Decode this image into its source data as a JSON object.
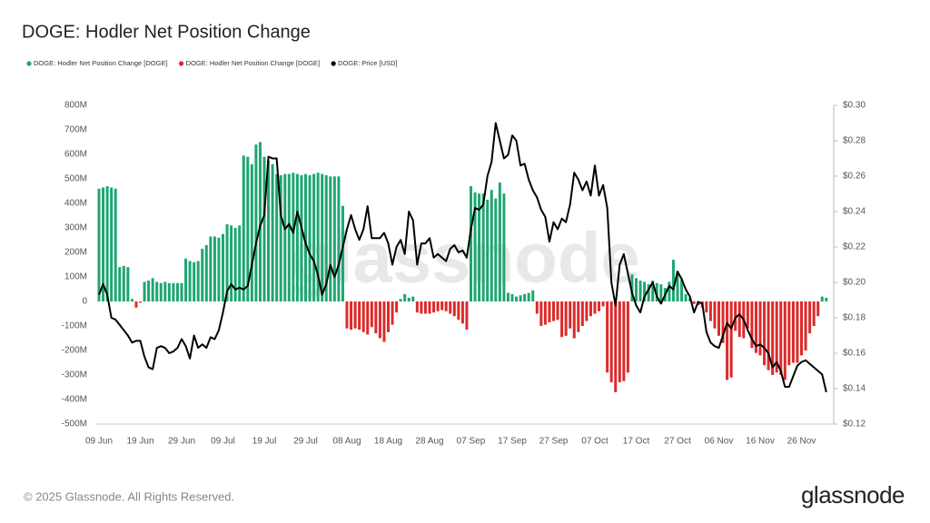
{
  "chart_data": {
    "type": "bar",
    "title": "DOGE: Hodler Net Position Change",
    "categories": [
      "09 Jun",
      null,
      null,
      null,
      null,
      null,
      null,
      null,
      null,
      null,
      "19 Jun",
      null,
      null,
      null,
      null,
      null,
      null,
      null,
      null,
      null,
      "29 Jun",
      null,
      null,
      null,
      null,
      null,
      null,
      null,
      null,
      null,
      "09 Jul",
      null,
      null,
      null,
      null,
      null,
      null,
      null,
      null,
      null,
      "19 Jul",
      null,
      null,
      null,
      null,
      null,
      null,
      null,
      null,
      null,
      "29 Jul",
      null,
      null,
      null,
      null,
      null,
      null,
      null,
      null,
      null,
      "08 Aug",
      null,
      null,
      null,
      null,
      null,
      null,
      null,
      null,
      null,
      "18 Aug",
      null,
      null,
      null,
      null,
      null,
      null,
      null,
      null,
      null,
      "28 Aug",
      null,
      null,
      null,
      null,
      null,
      null,
      null,
      null,
      null,
      "07 Sep",
      null,
      null,
      null,
      null,
      null,
      null,
      null,
      null,
      null,
      "17 Sep",
      null,
      null,
      null,
      null,
      null,
      null,
      null,
      null,
      null,
      "27 Sep",
      null,
      null,
      null,
      null,
      null,
      null,
      null,
      null,
      null,
      "07 Oct",
      null,
      null,
      null,
      null,
      null,
      null,
      null,
      null,
      null,
      "17 Oct",
      null,
      null,
      null,
      null,
      null,
      null,
      null,
      null,
      null,
      "27 Oct",
      null,
      null,
      null,
      null,
      null,
      null,
      null,
      null,
      null,
      "06 Nov",
      null,
      null,
      null,
      null,
      null,
      null,
      null,
      null,
      null,
      "16 Nov",
      null,
      null,
      null,
      null,
      null,
      null,
      null,
      null,
      null,
      "26 Nov",
      null,
      null,
      null,
      null,
      null,
      null
    ],
    "series": [
      {
        "name": "DOGE: Hodler Net Position Change [DOGE]",
        "color": "#1ea672",
        "values": [
          460,
          465,
          470,
          465,
          460,
          140,
          145,
          140,
          10,
          null,
          null,
          80,
          85,
          95,
          80,
          75,
          80,
          75,
          75,
          75,
          75,
          175,
          165,
          160,
          165,
          215,
          230,
          265,
          265,
          260,
          275,
          315,
          310,
          300,
          310,
          595,
          590,
          560,
          640,
          650,
          590,
          575,
          560,
          520,
          515,
          520,
          520,
          525,
          520,
          515,
          520,
          515,
          520,
          525,
          520,
          515,
          510,
          510,
          510,
          390,
          null,
          null,
          null,
          null,
          null,
          null,
          null,
          null,
          null,
          null,
          null,
          null,
          null,
          10,
          30,
          15,
          20,
          null,
          null,
          null,
          null,
          null,
          null,
          null,
          null,
          null,
          null,
          null,
          null,
          null,
          470,
          445,
          440,
          440,
          415,
          455,
          420,
          485,
          440,
          35,
          30,
          20,
          25,
          30,
          35,
          45,
          null,
          null,
          null,
          null,
          null,
          null,
          null,
          null,
          null,
          null,
          null,
          null,
          null,
          null,
          null,
          null,
          null,
          null,
          null,
          null,
          null,
          null,
          null,
          110,
          95,
          85,
          80,
          70,
          85,
          75,
          70,
          55,
          80,
          170,
          125,
          90,
          30,
          15,
          null,
          null,
          null,
          null,
          null,
          null,
          null,
          null,
          null,
          null,
          null,
          null,
          null,
          null,
          null,
          null,
          null,
          null,
          null,
          null,
          null,
          null,
          null,
          null,
          null,
          null,
          null,
          null,
          null,
          null,
          null,
          20,
          15
        ]
      },
      {
        "name": "DOGE: Hodler Net Position Change [DOGE]",
        "color": "#dc2a2a",
        "values": [
          null,
          null,
          null,
          null,
          null,
          null,
          null,
          null,
          null,
          -25,
          -5,
          null,
          null,
          null,
          null,
          null,
          null,
          null,
          null,
          null,
          null,
          null,
          null,
          null,
          null,
          null,
          null,
          null,
          null,
          null,
          null,
          null,
          null,
          null,
          null,
          null,
          null,
          null,
          null,
          null,
          null,
          null,
          null,
          null,
          null,
          null,
          null,
          null,
          null,
          null,
          null,
          null,
          null,
          null,
          null,
          null,
          null,
          null,
          null,
          null,
          -110,
          -115,
          -110,
          -115,
          -125,
          -135,
          -105,
          -130,
          -150,
          -165,
          -125,
          -95,
          -45,
          null,
          null,
          null,
          null,
          -45,
          -50,
          -50,
          -50,
          -45,
          -40,
          -35,
          -40,
          -50,
          -60,
          -75,
          -90,
          -115,
          null,
          null,
          null,
          null,
          null,
          null,
          null,
          null,
          null,
          null,
          null,
          null,
          null,
          null,
          null,
          null,
          -50,
          -100,
          -95,
          -85,
          -80,
          -75,
          -145,
          -140,
          -110,
          -150,
          -125,
          -100,
          -80,
          -60,
          -50,
          -40,
          -20,
          -290,
          -330,
          -370,
          -330,
          -325,
          -290,
          null,
          null,
          null,
          null,
          null,
          null,
          null,
          null,
          null,
          null,
          null,
          null,
          null,
          null,
          null,
          -10,
          -15,
          -25,
          -45,
          -80,
          -110,
          -140,
          -170,
          -320,
          -310,
          -120,
          -145,
          -150,
          -110,
          -190,
          -210,
          -220,
          -260,
          -280,
          -300,
          -290,
          -300,
          -320,
          -260,
          -250,
          -250,
          -220,
          -200,
          -130,
          -100,
          -60,
          null,
          null
        ]
      },
      {
        "name": "DOGE: Price [USD]",
        "color": "#000000",
        "axis": "y2",
        "type": "line",
        "values": [
          0.193,
          0.199,
          0.193,
          0.18,
          0.179,
          0.176,
          0.173,
          0.17,
          0.166,
          0.167,
          0.167,
          0.158,
          0.152,
          0.151,
          0.163,
          0.164,
          0.163,
          0.16,
          0.161,
          0.163,
          0.168,
          0.164,
          0.157,
          0.17,
          0.163,
          0.165,
          0.163,
          0.169,
          0.168,
          0.173,
          0.183,
          0.195,
          0.199,
          0.196,
          0.197,
          0.196,
          0.198,
          0.21,
          0.222,
          0.232,
          0.238,
          0.271,
          0.27,
          0.27,
          0.238,
          0.23,
          0.233,
          0.228,
          0.24,
          0.231,
          0.222,
          0.216,
          0.212,
          0.204,
          0.193,
          0.199,
          0.21,
          0.203,
          0.21,
          0.22,
          0.23,
          0.238,
          0.23,
          0.224,
          0.23,
          0.243,
          0.225,
          0.225,
          0.225,
          0.228,
          0.222,
          0.21,
          0.22,
          0.224,
          0.216,
          0.24,
          0.235,
          0.21,
          0.222,
          0.222,
          0.225,
          0.214,
          0.216,
          0.214,
          0.212,
          0.219,
          0.221,
          0.217,
          0.218,
          0.214,
          0.23,
          0.242,
          0.241,
          0.244,
          0.26,
          0.268,
          0.29,
          0.28,
          0.27,
          0.272,
          0.283,
          0.28,
          0.266,
          0.267,
          0.258,
          0.252,
          0.248,
          0.241,
          0.237,
          0.223,
          0.234,
          0.23,
          0.236,
          0.234,
          0.244,
          0.262,
          0.258,
          0.252,
          0.257,
          0.249,
          0.266,
          0.249,
          0.255,
          0.242,
          0.2,
          0.187,
          0.21,
          0.216,
          0.205,
          0.194,
          0.187,
          0.183,
          0.192,
          0.196,
          0.2,
          0.192,
          0.188,
          0.193,
          0.198,
          0.196,
          0.206,
          0.202,
          0.196,
          0.192,
          0.183,
          0.189,
          0.188,
          0.172,
          0.166,
          0.164,
          0.163,
          0.17,
          0.177,
          0.174,
          0.18,
          0.182,
          0.179,
          0.173,
          0.168,
          0.164,
          0.165,
          0.163,
          0.16,
          0.152,
          0.155,
          0.15,
          0.141,
          0.141,
          0.147,
          0.153,
          0.155,
          0.156,
          0.154,
          0.152,
          0.15,
          0.148,
          0.138
        ]
      }
    ],
    "ylim": [
      -500,
      800
    ],
    "yticks": [
      {
        "value": -500,
        "label": "-500M"
      },
      {
        "value": -400,
        "label": "-400M"
      },
      {
        "value": -300,
        "label": "-300M"
      },
      {
        "value": -200,
        "label": "-200M"
      },
      {
        "value": -100,
        "label": "-100M"
      },
      0,
      {
        "value": 100,
        "label": "100M"
      },
      {
        "value": 200,
        "label": "200M"
      },
      {
        "value": 300,
        "label": "300M"
      },
      {
        "value": 400,
        "label": "400M"
      },
      {
        "value": 500,
        "label": "500M"
      },
      {
        "value": 600,
        "label": "600M"
      },
      {
        "value": 700,
        "label": "700M"
      },
      {
        "value": 800,
        "label": "800M"
      }
    ],
    "y2lim": [
      0.12,
      0.3
    ],
    "y2ticks": [
      {
        "value": 0.12,
        "label": "$0.12"
      },
      {
        "value": 0.14,
        "label": "$0.14"
      },
      {
        "value": 0.16,
        "label": "$0.16"
      },
      {
        "value": 0.18,
        "label": "$0.18"
      },
      {
        "value": 0.2,
        "label": "$0.20"
      },
      {
        "value": 0.22,
        "label": "$0.22"
      },
      {
        "value": 0.24,
        "label": "$0.24"
      },
      {
        "value": 0.26,
        "label": "$0.26"
      },
      {
        "value": 0.28,
        "label": "$0.28"
      },
      {
        "value": 0.3,
        "label": "$0.30"
      }
    ],
    "grid": false,
    "legend": "top-left"
  },
  "watermark": "glassnode",
  "footer": "© 2025 Glassnode. All Rights Reserved.",
  "brand": "glassnode"
}
